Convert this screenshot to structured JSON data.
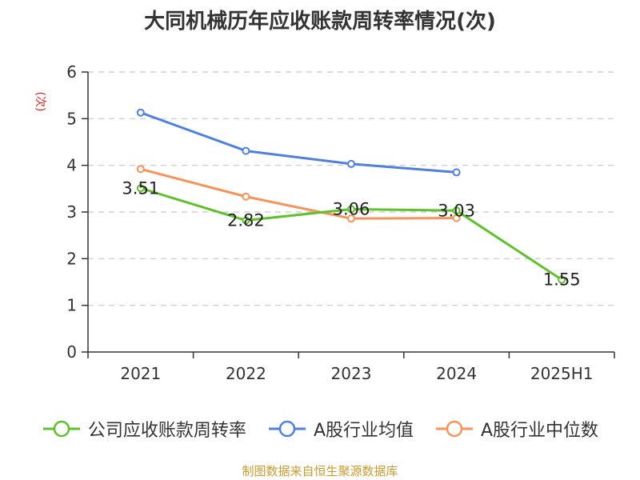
{
  "title": "大同机械历年应收账款周转率情况(次)",
  "source": "制图数据来自恒生聚源数据库",
  "chart_data": {
    "type": "line",
    "title": "大同机械历年应收账款周转率情况(次)",
    "xlabel": "",
    "ylabel": "(次)",
    "categories": [
      "2021",
      "2022",
      "2023",
      "2024",
      "2025H1"
    ],
    "ylim": [
      0,
      6
    ],
    "yticks": [
      0,
      1,
      2,
      3,
      4,
      5,
      6
    ],
    "grid": true,
    "legend_position": "bottom",
    "series": [
      {
        "name": "公司应收账款周转率",
        "color": "#5ec12b",
        "values": [
          3.51,
          2.82,
          3.06,
          3.03,
          1.55
        ],
        "labels": [
          "3.51",
          "2.82",
          "3.06",
          "3.03",
          "1.55"
        ]
      },
      {
        "name": "A股行业均值",
        "color": "#4f7fe0",
        "values": [
          5.13,
          4.31,
          4.03,
          3.85,
          null
        ]
      },
      {
        "name": "A股行业中位数",
        "color": "#f79359",
        "values": [
          3.92,
          3.33,
          2.86,
          2.87,
          null
        ]
      }
    ]
  }
}
